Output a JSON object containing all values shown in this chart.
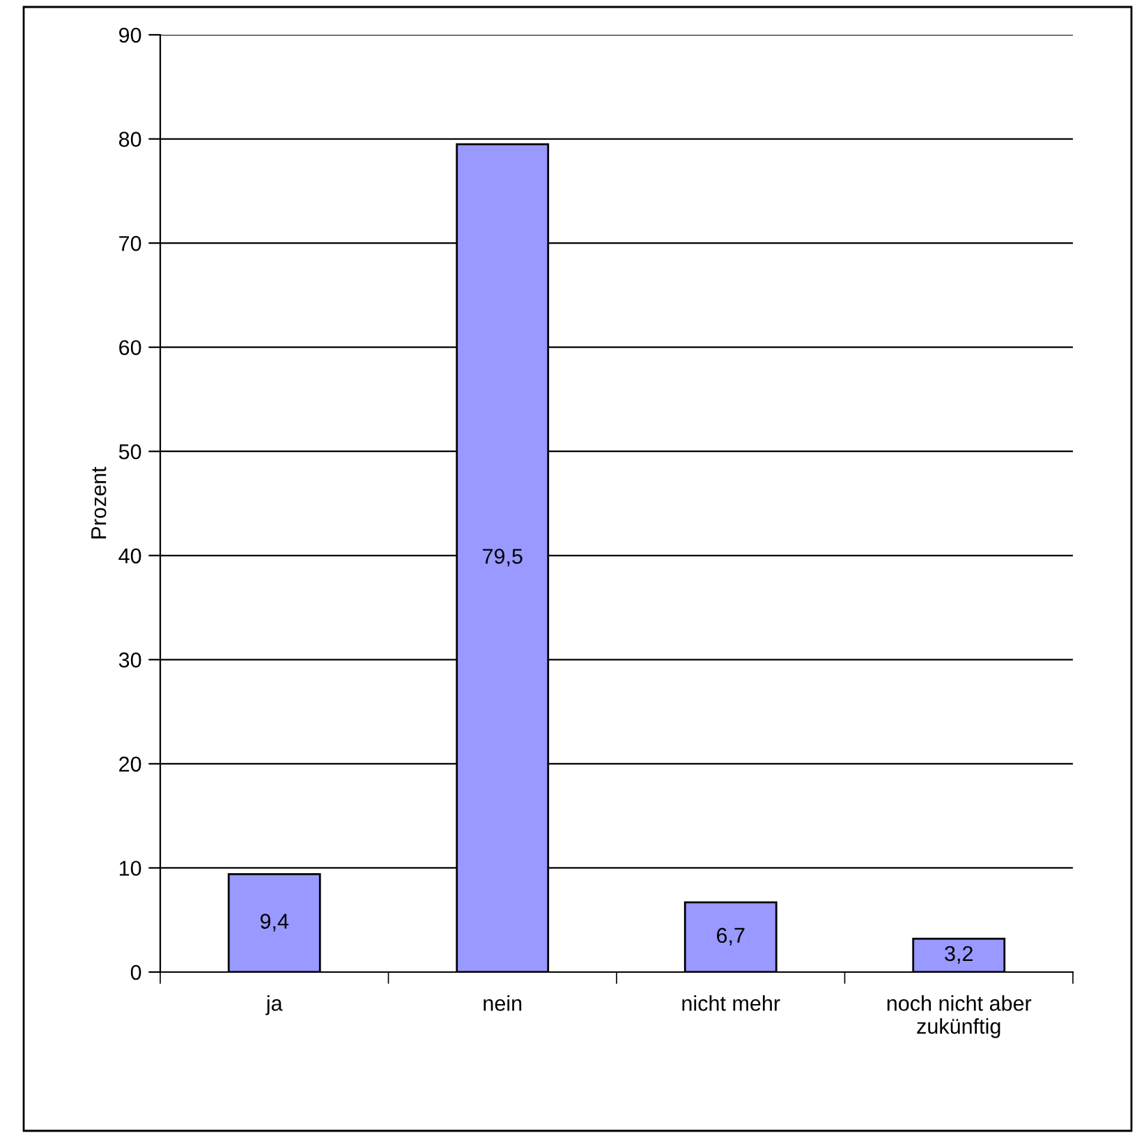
{
  "chart_data": {
    "type": "bar",
    "ylabel": "Prozent",
    "categories": [
      "ja",
      "nein",
      "nicht mehr",
      "noch nicht aber\nzukünftig"
    ],
    "values": [
      9.4,
      79.5,
      6.7,
      3.2
    ],
    "value_labels": [
      "9,4",
      "79,5",
      "6,7",
      "3,2"
    ],
    "color": "#9999ff",
    "ylim": [
      0,
      90
    ],
    "yticks": [
      0,
      10,
      20,
      30,
      40,
      50,
      60,
      70,
      80,
      90
    ],
    "grid": "y",
    "legend": false
  }
}
